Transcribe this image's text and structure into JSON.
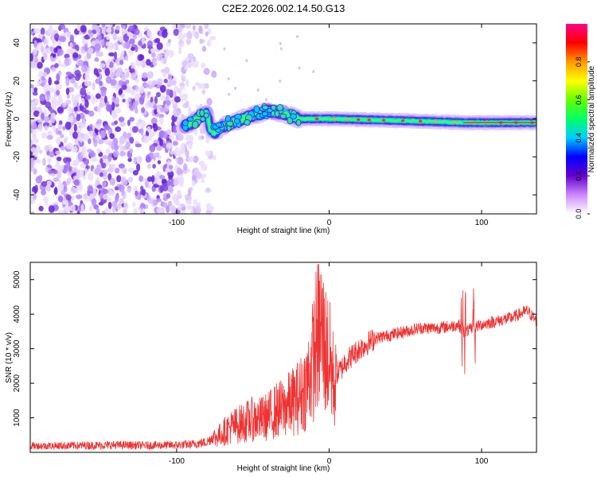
{
  "title": "C2E2.2026.002.14.50.G13",
  "chart_data": [
    {
      "type": "heatmap",
      "xlabel": "Height of straight line (km)",
      "ylabel": "Frequency (Hz)",
      "xlim": [
        -196,
        136
      ],
      "ylim": [
        -50,
        50
      ],
      "xticks": [
        -100,
        0,
        100
      ],
      "xtick_labels": [
        "-100",
        "0",
        "100"
      ],
      "yticks": [
        -40,
        -20,
        0,
        20,
        40
      ],
      "ytick_labels": [
        "-40",
        "-20",
        "0",
        "20",
        "40"
      ],
      "noise_region_x": [
        -196,
        -75
      ],
      "signal_trace": [
        {
          "x": -95,
          "y": -4
        },
        {
          "x": -90,
          "y": -2
        },
        {
          "x": -85,
          "y": 1
        },
        {
          "x": -80,
          "y": 3
        },
        {
          "x": -78,
          "y": -5
        },
        {
          "x": -75,
          "y": -7
        },
        {
          "x": -70,
          "y": -4
        },
        {
          "x": -60,
          "y": -1
        },
        {
          "x": -50,
          "y": 2
        },
        {
          "x": -40,
          "y": 4
        },
        {
          "x": -30,
          "y": 3
        },
        {
          "x": -20,
          "y": 0
        },
        {
          "x": 0,
          "y": 0
        },
        {
          "x": 50,
          "y": -1
        },
        {
          "x": 90,
          "y": -2
        },
        {
          "x": 135,
          "y": -2
        }
      ],
      "colorbar": {
        "label": "Normalized spectral amplitude",
        "range": [
          0,
          1
        ],
        "ticks": [
          0.0,
          0.2,
          0.4,
          0.6,
          0.8
        ],
        "tick_labels": [
          "0.0",
          "0.2",
          "0.4",
          "0.6",
          "0.8"
        ],
        "colors": [
          "#ffffff",
          "#cc88ff",
          "#6600cc",
          "#0000ff",
          "#00ccff",
          "#00ff66",
          "#66ff00",
          "#ffff00",
          "#ff9900",
          "#ff0000",
          "#ff0088"
        ]
      },
      "grid": false
    },
    {
      "type": "line",
      "xlabel": "Height of straight line (km)",
      "ylabel": "SNR (10 * v/v)",
      "xlim": [
        -196,
        136
      ],
      "ylim": [
        0,
        5500
      ],
      "xticks": [
        -100,
        0,
        100
      ],
      "xtick_labels": [
        "-100",
        "0",
        "100"
      ],
      "yticks": [
        1000,
        2000,
        3000,
        4000,
        5000
      ],
      "ytick_labels": [
        "1000",
        "2000",
        "3000",
        "4000",
        "5000"
      ],
      "line_color": "#ee3333",
      "series": [
        {
          "x": [
            -196,
            -180,
            -160,
            -140,
            -120,
            -100,
            -90,
            -80,
            -75,
            -70,
            -65,
            -60,
            -55,
            -50,
            -45,
            -40,
            -35,
            -30,
            -25,
            -20,
            -15,
            -12,
            -10,
            -8,
            -5,
            -3,
            0,
            3,
            5,
            8,
            10,
            15,
            20,
            30,
            40,
            50,
            60,
            70,
            80,
            85,
            88,
            90,
            95,
            100,
            110,
            120,
            125,
            130,
            136
          ],
          "values": [
            180,
            190,
            200,
            210,
            200,
            210,
            230,
            300,
            500,
            700,
            900,
            1000,
            1100,
            1200,
            1200,
            1300,
            1500,
            1600,
            1800,
            2000,
            2400,
            3000,
            3500,
            4200,
            4400,
            3800,
            3400,
            2600,
            2300,
            2400,
            2600,
            2800,
            3000,
            3300,
            3400,
            3500,
            3600,
            3600,
            3650,
            3700,
            3500,
            3500,
            3600,
            3700,
            3800,
            3900,
            4000,
            4100,
            3800
          ]
        }
      ],
      "grid": false
    }
  ]
}
